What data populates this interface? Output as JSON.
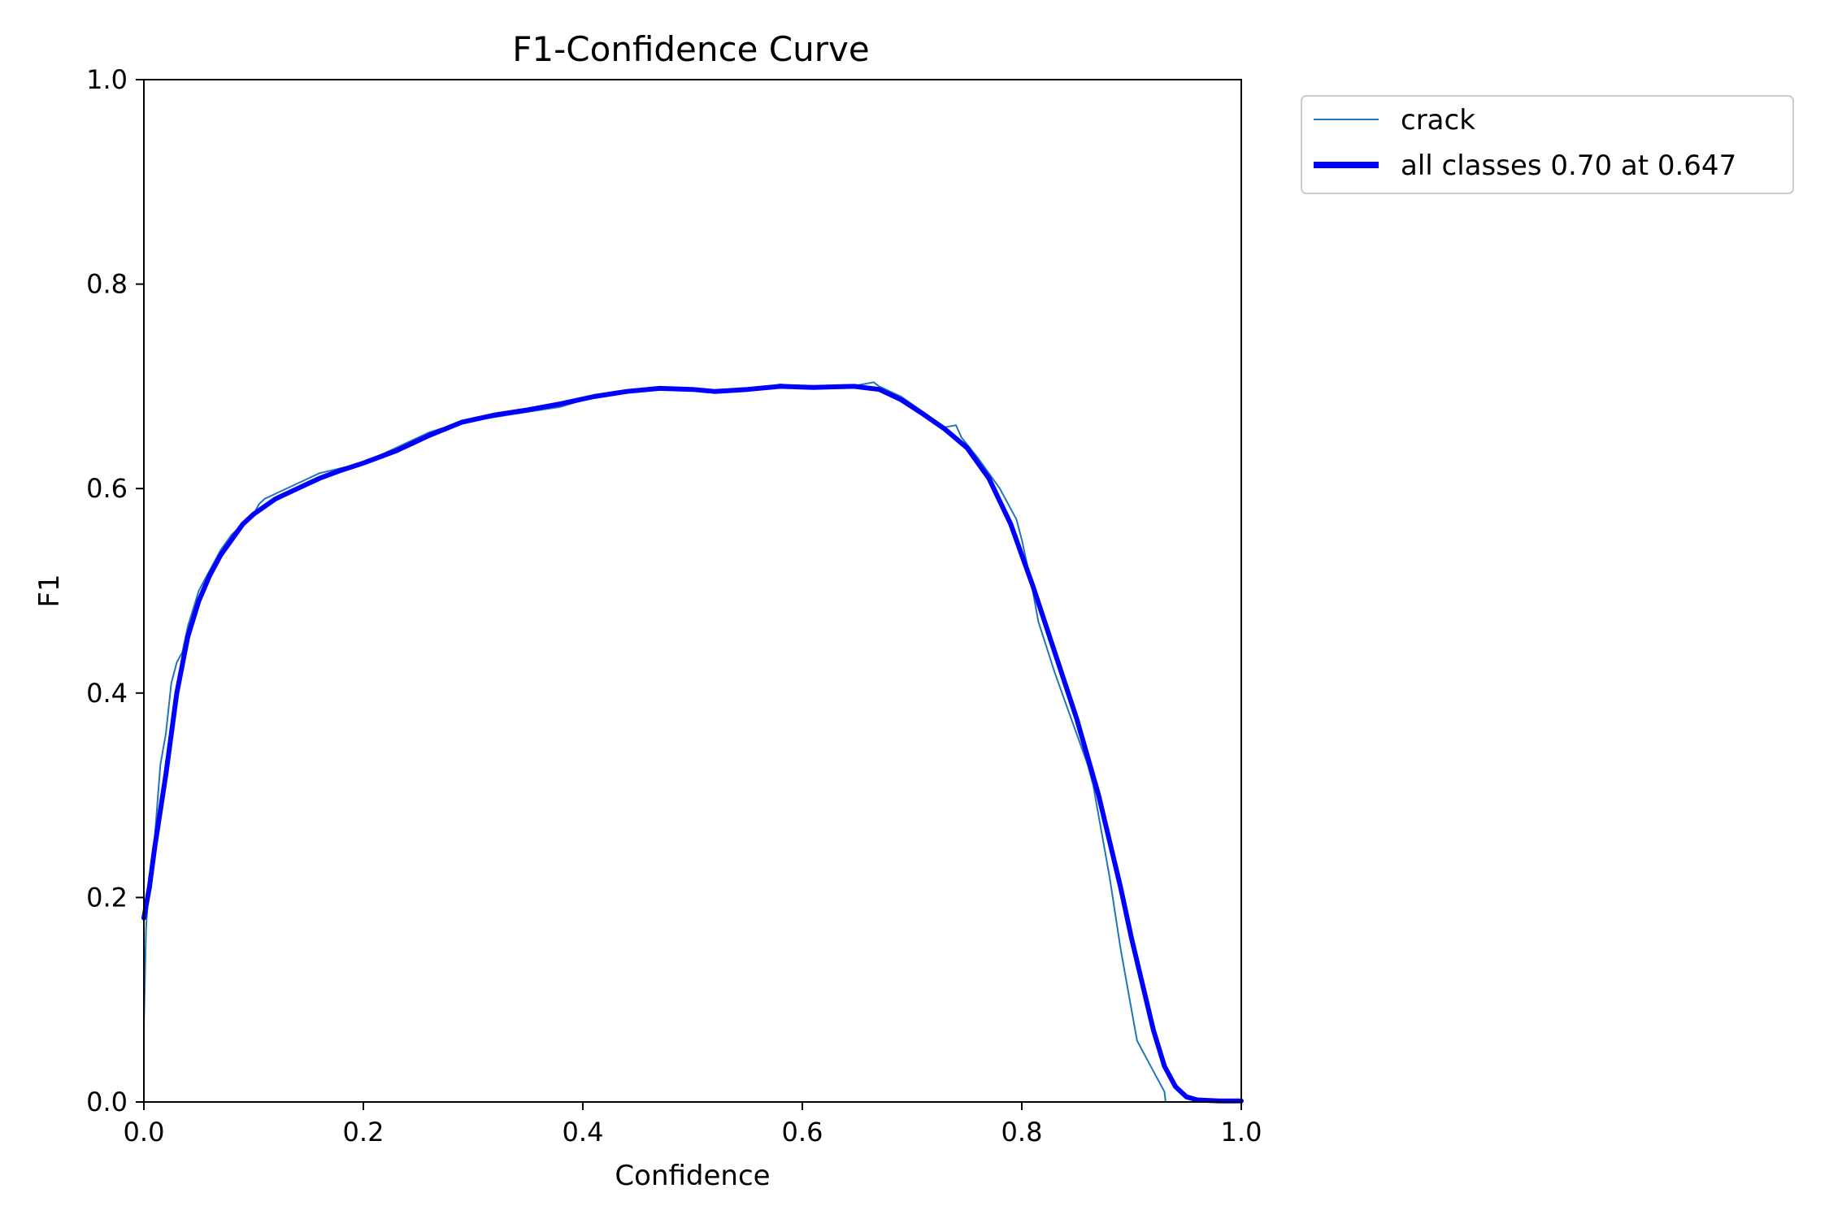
{
  "chart_data": {
    "type": "line",
    "title": "F1-Confidence Curve",
    "xlabel": "Confidence",
    "ylabel": "F1",
    "xlim": [
      0,
      1
    ],
    "ylim": [
      0,
      1
    ],
    "xticks": [
      "0.0",
      "0.2",
      "0.4",
      "0.6",
      "0.8",
      "1.0"
    ],
    "yticks": [
      "0.0",
      "0.2",
      "0.4",
      "0.6",
      "0.8",
      "1.0"
    ],
    "grid": false,
    "legend_position": "outside-top-right",
    "series": [
      {
        "name": "crack",
        "color": "#1f77b4",
        "x": [
          0.0,
          0.002,
          0.005,
          0.01,
          0.015,
          0.02,
          0.025,
          0.03,
          0.035,
          0.04,
          0.05,
          0.06,
          0.07,
          0.08,
          0.09,
          0.1,
          0.105,
          0.11,
          0.12,
          0.14,
          0.16,
          0.18,
          0.2,
          0.23,
          0.26,
          0.29,
          0.32,
          0.35,
          0.38,
          0.41,
          0.44,
          0.47,
          0.5,
          0.53,
          0.56,
          0.58,
          0.6,
          0.62,
          0.65,
          0.665,
          0.67,
          0.69,
          0.71,
          0.73,
          0.74,
          0.745,
          0.76,
          0.78,
          0.795,
          0.8,
          0.81,
          0.815,
          0.83,
          0.84,
          0.85,
          0.86,
          0.865,
          0.87,
          0.88,
          0.89,
          0.9,
          0.905,
          0.91,
          0.92,
          0.93,
          0.931,
          0.94,
          0.95,
          0.96,
          0.98,
          1.0
        ],
        "y": [
          0.075,
          0.17,
          0.22,
          0.26,
          0.33,
          0.36,
          0.41,
          0.43,
          0.44,
          0.465,
          0.5,
          0.52,
          0.54,
          0.555,
          0.565,
          0.575,
          0.585,
          0.59,
          0.595,
          0.605,
          0.615,
          0.62,
          0.625,
          0.64,
          0.655,
          0.665,
          0.67,
          0.675,
          0.68,
          0.69,
          0.695,
          0.698,
          0.697,
          0.695,
          0.697,
          0.702,
          0.699,
          0.699,
          0.701,
          0.704,
          0.7,
          0.69,
          0.675,
          0.66,
          0.662,
          0.65,
          0.63,
          0.6,
          0.57,
          0.55,
          0.5,
          0.47,
          0.42,
          0.39,
          0.36,
          0.33,
          0.31,
          0.28,
          0.22,
          0.15,
          0.09,
          0.06,
          0.05,
          0.03,
          0.01,
          0.0,
          0.0,
          0.0,
          0.0,
          0.0,
          0.0
        ],
        "line_width": 2
      },
      {
        "name": "all classes 0.70 at 0.647",
        "color": "#0000ff",
        "x": [
          0.0,
          0.005,
          0.01,
          0.02,
          0.03,
          0.04,
          0.05,
          0.06,
          0.07,
          0.08,
          0.09,
          0.1,
          0.12,
          0.14,
          0.16,
          0.18,
          0.2,
          0.23,
          0.26,
          0.29,
          0.32,
          0.35,
          0.38,
          0.41,
          0.44,
          0.47,
          0.5,
          0.52,
          0.55,
          0.58,
          0.61,
          0.647,
          0.67,
          0.69,
          0.71,
          0.73,
          0.75,
          0.77,
          0.79,
          0.81,
          0.83,
          0.85,
          0.87,
          0.89,
          0.9,
          0.91,
          0.92,
          0.93,
          0.94,
          0.95,
          0.96,
          0.98,
          1.0
        ],
        "y": [
          0.18,
          0.21,
          0.25,
          0.32,
          0.4,
          0.455,
          0.49,
          0.515,
          0.535,
          0.55,
          0.565,
          0.575,
          0.59,
          0.6,
          0.61,
          0.618,
          0.625,
          0.637,
          0.652,
          0.665,
          0.672,
          0.677,
          0.683,
          0.69,
          0.695,
          0.698,
          0.697,
          0.695,
          0.697,
          0.7,
          0.699,
          0.7,
          0.697,
          0.687,
          0.673,
          0.658,
          0.64,
          0.61,
          0.565,
          0.505,
          0.44,
          0.375,
          0.3,
          0.21,
          0.16,
          0.115,
          0.07,
          0.035,
          0.015,
          0.005,
          0.002,
          0.001,
          0.001
        ],
        "line_width": 6
      }
    ]
  }
}
